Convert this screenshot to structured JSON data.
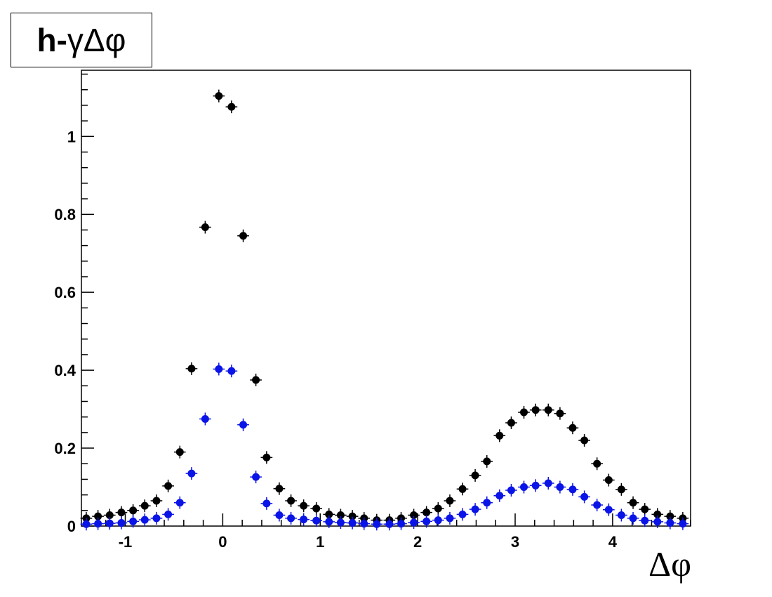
{
  "title": {
    "prefix": "h-",
    "gamma": "γ",
    "suffix": " Δφ"
  },
  "chart_data": {
    "type": "scatter",
    "title": "h-γ Δφ",
    "xlabel": "Δφ",
    "ylabel": "",
    "xlim": [
      -1.45,
      4.8
    ],
    "ylim": [
      0,
      1.17
    ],
    "x_ticks": [
      -1,
      0,
      1,
      2,
      3,
      4
    ],
    "x_tick_labels": [
      "-1",
      "0",
      "1",
      "2",
      "3",
      "4"
    ],
    "y_ticks": [
      0,
      0.2,
      0.4,
      0.6,
      0.8,
      1.0
    ],
    "y_tick_labels": [
      "0",
      "0.2",
      "0.4",
      "0.6",
      "0.8",
      "1"
    ],
    "grid": false,
    "series": [
      {
        "color": "#000000",
        "x": [
          -1.4,
          -1.28,
          -1.16,
          -1.04,
          -0.92,
          -0.8,
          -0.68,
          -0.56,
          -0.44,
          -0.32,
          -0.18,
          -0.04,
          0.09,
          0.21,
          0.34,
          0.45,
          0.58,
          0.7,
          0.83,
          0.96,
          1.09,
          1.21,
          1.33,
          1.45,
          1.58,
          1.71,
          1.83,
          1.96,
          2.09,
          2.21,
          2.33,
          2.46,
          2.59,
          2.71,
          2.84,
          2.96,
          3.09,
          3.21,
          3.34,
          3.46,
          3.59,
          3.71,
          3.84,
          3.96,
          4.09,
          4.21,
          4.33,
          4.46,
          4.59,
          4.72
        ],
        "y": [
          0.02,
          0.025,
          0.028,
          0.035,
          0.04,
          0.052,
          0.065,
          0.103,
          0.19,
          0.404,
          0.767,
          1.104,
          1.076,
          0.745,
          0.375,
          0.176,
          0.096,
          0.065,
          0.052,
          0.045,
          0.03,
          0.028,
          0.025,
          0.02,
          0.015,
          0.015,
          0.02,
          0.028,
          0.035,
          0.045,
          0.065,
          0.095,
          0.13,
          0.166,
          0.232,
          0.265,
          0.292,
          0.298,
          0.298,
          0.289,
          0.252,
          0.22,
          0.16,
          0.118,
          0.094,
          0.06,
          0.043,
          0.03,
          0.025,
          0.02
        ]
      },
      {
        "color": "#0a14e6",
        "x": [
          -1.4,
          -1.28,
          -1.16,
          -1.04,
          -0.92,
          -0.8,
          -0.68,
          -0.56,
          -0.44,
          -0.32,
          -0.18,
          -0.04,
          0.09,
          0.21,
          0.34,
          0.45,
          0.58,
          0.7,
          0.83,
          0.96,
          1.09,
          1.21,
          1.33,
          1.45,
          1.58,
          1.71,
          1.83,
          1.96,
          2.09,
          2.21,
          2.33,
          2.46,
          2.59,
          2.71,
          2.84,
          2.96,
          3.09,
          3.21,
          3.34,
          3.46,
          3.59,
          3.71,
          3.84,
          3.96,
          4.09,
          4.21,
          4.33,
          4.46,
          4.59,
          4.72
        ],
        "y": [
          0.005,
          0.006,
          0.007,
          0.008,
          0.012,
          0.016,
          0.02,
          0.03,
          0.06,
          0.135,
          0.275,
          0.403,
          0.398,
          0.26,
          0.126,
          0.058,
          0.028,
          0.02,
          0.017,
          0.014,
          0.011,
          0.009,
          0.008,
          0.006,
          0.005,
          0.005,
          0.006,
          0.009,
          0.012,
          0.015,
          0.02,
          0.03,
          0.043,
          0.06,
          0.078,
          0.092,
          0.1,
          0.104,
          0.11,
          0.1,
          0.094,
          0.075,
          0.054,
          0.042,
          0.028,
          0.02,
          0.014,
          0.011,
          0.008,
          0.006
        ]
      }
    ]
  }
}
